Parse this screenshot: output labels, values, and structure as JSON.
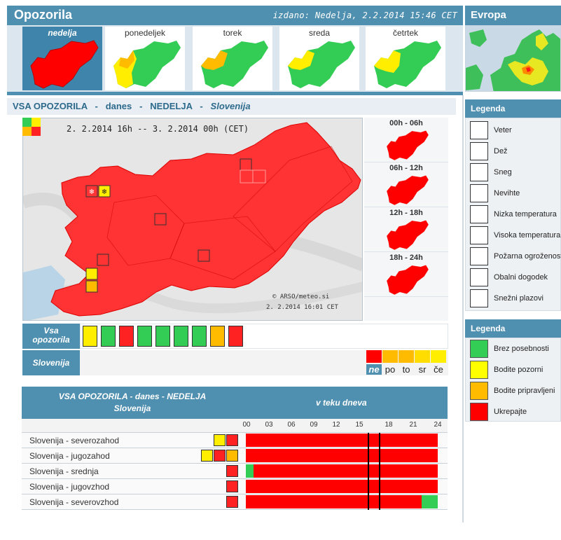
{
  "header": {
    "title": "Opozorila",
    "issued": "izdano: Nedelja, 2.2.2014 15:46 CET"
  },
  "europe": {
    "title": "Evropa"
  },
  "days": [
    {
      "label": "nedelja"
    },
    {
      "label": "ponedeljek"
    },
    {
      "label": "torek"
    },
    {
      "label": "sreda"
    },
    {
      "label": "četrtek"
    }
  ],
  "section": {
    "a": "VSA OPOZORILA",
    "sep": "-",
    "b": "danes",
    "c": "NEDELJA",
    "region": "Slovenija"
  },
  "map": {
    "dates": "2. 2.2014 16h -- 3. 2.2014 00h   (CET)",
    "copyright": "© ARSO/meteo.si",
    "stamp": "2. 2.2014  16:01 CET"
  },
  "periods": [
    {
      "label": "00h - 06h"
    },
    {
      "label": "06h - 12h"
    },
    {
      "label": "12h - 18h"
    },
    {
      "label": "18h - 24h"
    }
  ],
  "types_row": {
    "label_1": "Vsa",
    "label_2": "opozorila"
  },
  "slovenija_row": {
    "label": "Slovenija"
  },
  "levels": [
    {
      "abbr": "ne",
      "color": "#ff0000"
    },
    {
      "abbr": "po",
      "color": "#ffbb00"
    },
    {
      "abbr": "to",
      "color": "#ffbb00"
    },
    {
      "abbr": "sr",
      "color": "#ffdd00"
    },
    {
      "abbr": "če",
      "color": "#ffee00"
    }
  ],
  "legend1": {
    "title": "Legenda",
    "items": [
      {
        "label": "Veter",
        "icon": "wind-icon"
      },
      {
        "label": "Dež",
        "icon": "rain-icon"
      },
      {
        "label": "Sneg",
        "icon": "snow-icon"
      },
      {
        "label": "Nevihte",
        "icon": "thunderstorm-icon"
      },
      {
        "label": "Nizka temperatura",
        "icon": "low-temperature-icon"
      },
      {
        "label": "Visoka temperatura",
        "icon": "high-temperature-icon"
      },
      {
        "label": "Požarna ogroženost",
        "icon": "fire-icon"
      },
      {
        "label": "Obalni dogodek",
        "icon": "coastal-icon"
      },
      {
        "label": "Snežni plazovi",
        "icon": "avalanche-icon"
      }
    ]
  },
  "legend2": {
    "title": "Legenda",
    "items": [
      {
        "label": "Brez posebnosti",
        "color": "#33cc55"
      },
      {
        "label": "Bodite pozorni",
        "color": "#ffff00"
      },
      {
        "label": "Bodite pripravljeni",
        "color": "#ffbb00"
      },
      {
        "label": "Ukrepajte",
        "color": "#ff0000"
      }
    ]
  },
  "table": {
    "title_1": "VSA OPOZORILA - danes - NEDELJA",
    "title_2": "Slovenija",
    "period": "v teku dneva",
    "hours": [
      "00",
      "03",
      "06",
      "09",
      "12",
      "15",
      "18",
      "21",
      "24"
    ],
    "rows": [
      {
        "name": "Slovenija - severozahod"
      },
      {
        "name": "Slovenija - jugozahod"
      },
      {
        "name": "Slovenija - srednja"
      },
      {
        "name": "Slovenija - jugovzhod"
      },
      {
        "name": "Slovenija - severovzhod"
      }
    ]
  }
}
